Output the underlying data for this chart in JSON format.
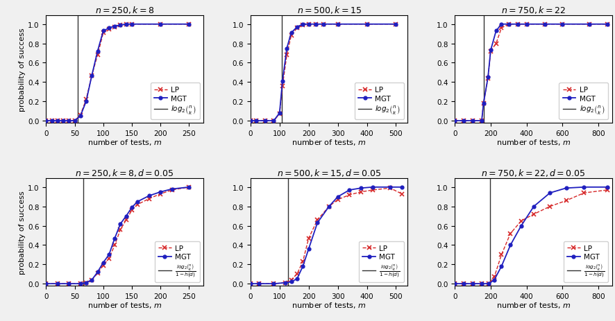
{
  "panels": [
    {
      "title": "$n = 250, k = 8$",
      "vline": 55,
      "xlim": [
        0,
        275
      ],
      "xticks": [
        0,
        50,
        100,
        150,
        200,
        250
      ],
      "mgt_x": [
        0,
        10,
        20,
        30,
        40,
        50,
        60,
        70,
        80,
        90,
        100,
        110,
        120,
        130,
        140,
        150,
        200,
        250
      ],
      "mgt_y": [
        0.0,
        0.0,
        0.0,
        0.0,
        0.0,
        0.0,
        0.05,
        0.2,
        0.47,
        0.72,
        0.93,
        0.96,
        0.98,
        0.99,
        1.0,
        1.0,
        1.0,
        1.0
      ],
      "lp_x": [
        0,
        10,
        20,
        30,
        40,
        50,
        60,
        70,
        80,
        90,
        100,
        110,
        120,
        130,
        140,
        150,
        200,
        250
      ],
      "lp_y": [
        0.0,
        0.0,
        0.0,
        0.0,
        0.0,
        0.0,
        0.06,
        0.22,
        0.47,
        0.68,
        0.91,
        0.95,
        0.97,
        0.99,
        1.0,
        1.0,
        1.0,
        1.0
      ],
      "noisy": false,
      "legend_label": "$log_2\\binom{n}{k}$"
    },
    {
      "title": "$n = 500, k = 15$",
      "vline": 108,
      "xlim": [
        0,
        540
      ],
      "xticks": [
        0,
        100,
        200,
        300,
        400,
        500
      ],
      "mgt_x": [
        0,
        20,
        50,
        80,
        100,
        110,
        125,
        140,
        160,
        180,
        200,
        225,
        250,
        300,
        400,
        500
      ],
      "mgt_y": [
        0.0,
        0.0,
        0.0,
        0.0,
        0.08,
        0.41,
        0.75,
        0.91,
        0.97,
        1.0,
        1.0,
        1.0,
        1.0,
        1.0,
        1.0,
        1.0
      ],
      "lp_x": [
        0,
        20,
        50,
        80,
        100,
        110,
        125,
        140,
        160,
        180,
        200,
        225,
        250,
        300,
        400,
        500
      ],
      "lp_y": [
        0.0,
        0.0,
        0.0,
        0.0,
        0.07,
        0.36,
        0.68,
        0.88,
        0.96,
        0.99,
        1.0,
        1.0,
        1.0,
        1.0,
        1.0,
        1.0
      ],
      "noisy": false,
      "legend_label": "$log_2\\binom{n}{k}$"
    },
    {
      "title": "$n = 750, k = 22$",
      "vline": 160,
      "xlim": [
        0,
        875
      ],
      "xticks": [
        0,
        200,
        400,
        600,
        800
      ],
      "mgt_x": [
        0,
        50,
        100,
        150,
        160,
        185,
        200,
        230,
        260,
        300,
        350,
        400,
        500,
        600,
        750,
        850
      ],
      "mgt_y": [
        0.0,
        0.0,
        0.0,
        0.0,
        0.18,
        0.45,
        0.73,
        0.93,
        1.0,
        1.0,
        1.0,
        1.0,
        1.0,
        1.0,
        1.0,
        1.0
      ],
      "lp_x": [
        0,
        50,
        100,
        150,
        160,
        185,
        200,
        230,
        260,
        300,
        350,
        400,
        500,
        600,
        750,
        850
      ],
      "lp_y": [
        0.0,
        0.0,
        0.0,
        0.0,
        0.18,
        0.44,
        0.72,
        0.8,
        0.96,
        1.0,
        1.0,
        1.0,
        1.0,
        1.0,
        1.0,
        1.0
      ],
      "noisy": false,
      "legend_label": "$log_2\\binom{n}{k}$"
    },
    {
      "title": "$n = 250, k = 8, d = 0.05$",
      "vline": 65,
      "xlim": [
        0,
        275
      ],
      "xticks": [
        0,
        50,
        100,
        150,
        200,
        250
      ],
      "mgt_x": [
        0,
        20,
        40,
        60,
        70,
        80,
        90,
        100,
        110,
        120,
        130,
        140,
        150,
        160,
        180,
        200,
        220,
        250
      ],
      "mgt_y": [
        0.0,
        0.0,
        0.0,
        0.0,
        0.01,
        0.04,
        0.12,
        0.22,
        0.3,
        0.47,
        0.62,
        0.7,
        0.79,
        0.85,
        0.91,
        0.95,
        0.98,
        1.0
      ],
      "lp_x": [
        0,
        20,
        40,
        60,
        70,
        80,
        90,
        100,
        110,
        120,
        130,
        140,
        150,
        160,
        180,
        200,
        220,
        250
      ],
      "lp_y": [
        0.0,
        0.0,
        0.0,
        0.0,
        0.01,
        0.04,
        0.11,
        0.19,
        0.26,
        0.4,
        0.56,
        0.66,
        0.76,
        0.82,
        0.88,
        0.93,
        0.97,
        1.0
      ],
      "noisy": true,
      "legend_label": "$\\frac{log_2\\binom{n}{k}}{1-h(d)}$"
    },
    {
      "title": "$n = 500, k = 15, d = 0.05$",
      "vline": 130,
      "xlim": [
        0,
        540
      ],
      "xticks": [
        0,
        100,
        200,
        300,
        400,
        500
      ],
      "mgt_x": [
        0,
        30,
        80,
        120,
        140,
        160,
        180,
        200,
        230,
        270,
        300,
        340,
        380,
        420,
        480,
        520
      ],
      "mgt_y": [
        0.0,
        0.0,
        0.0,
        0.01,
        0.02,
        0.05,
        0.18,
        0.36,
        0.63,
        0.8,
        0.9,
        0.97,
        0.99,
        1.0,
        1.0,
        1.0
      ],
      "lp_x": [
        0,
        30,
        80,
        120,
        140,
        160,
        180,
        200,
        230,
        270,
        300,
        340,
        380,
        420,
        480,
        520
      ],
      "lp_y": [
        0.0,
        0.0,
        0.0,
        0.01,
        0.04,
        0.1,
        0.23,
        0.47,
        0.66,
        0.8,
        0.87,
        0.92,
        0.95,
        0.97,
        0.99,
        0.93
      ],
      "noisy": true,
      "legend_label": "$\\frac{log_2\\binom{n}{k}}{1-h(d)}$"
    },
    {
      "title": "$n = 750, k = 22, d = 0.05$",
      "vline": 195,
      "xlim": [
        0,
        875
      ],
      "xticks": [
        0,
        200,
        400,
        600,
        800
      ],
      "mgt_x": [
        0,
        50,
        100,
        150,
        190,
        220,
        260,
        310,
        370,
        440,
        530,
        620,
        720,
        850
      ],
      "mgt_y": [
        0.0,
        0.0,
        0.0,
        0.0,
        0.0,
        0.04,
        0.18,
        0.4,
        0.6,
        0.8,
        0.94,
        0.99,
        1.0,
        1.0
      ],
      "lp_x": [
        0,
        50,
        100,
        150,
        190,
        220,
        260,
        310,
        370,
        440,
        530,
        620,
        720,
        850
      ],
      "lp_y": [
        0.0,
        0.0,
        0.0,
        0.0,
        0.0,
        0.07,
        0.3,
        0.52,
        0.65,
        0.72,
        0.8,
        0.86,
        0.94,
        0.97
      ],
      "noisy": true,
      "legend_label": "$\\frac{log_2\\binom{n}{k}}{1-h(d)}$"
    }
  ],
  "lp_color": "#d62728",
  "mgt_color": "#1f1fbf",
  "vline_color": "#333333",
  "bg_color": "#f0f0f0",
  "ylabel": "probability of success",
  "xlabel": "number of tests, $m$",
  "title_fontsize": 9,
  "label_fontsize": 8,
  "tick_fontsize": 7.5,
  "legend_fontsize": 7.5
}
